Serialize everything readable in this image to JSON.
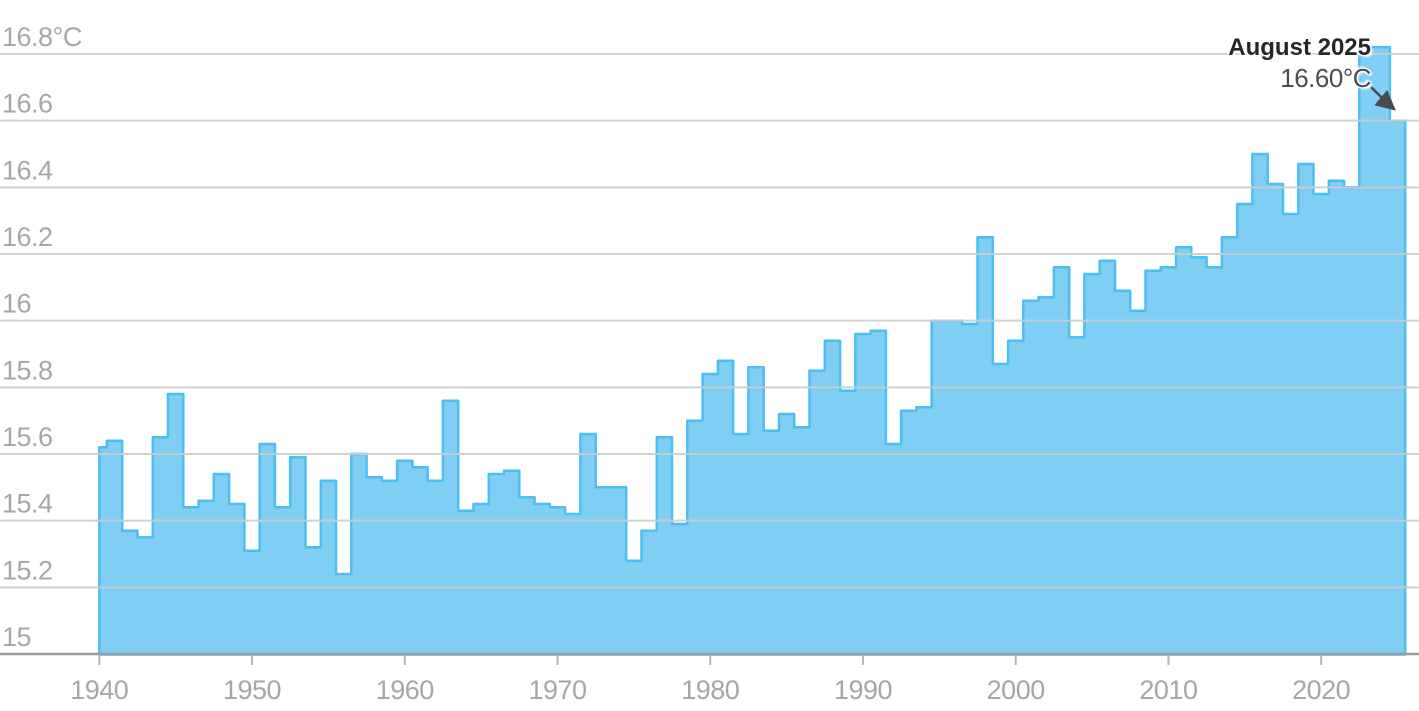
{
  "chart_data": {
    "type": "area",
    "subtype": "step",
    "description": "Global average August surface air temperature by year",
    "unit": "°C",
    "annotation": {
      "title": "August 2025",
      "value": "16.60°C"
    },
    "years": [
      1940,
      1941,
      1942,
      1943,
      1944,
      1945,
      1946,
      1947,
      1948,
      1949,
      1950,
      1951,
      1952,
      1953,
      1954,
      1955,
      1956,
      1957,
      1958,
      1959,
      1960,
      1961,
      1962,
      1963,
      1964,
      1965,
      1966,
      1967,
      1968,
      1969,
      1970,
      1971,
      1972,
      1973,
      1974,
      1975,
      1976,
      1977,
      1978,
      1979,
      1980,
      1981,
      1982,
      1983,
      1984,
      1985,
      1986,
      1987,
      1988,
      1989,
      1990,
      1991,
      1992,
      1993,
      1994,
      1995,
      1996,
      1997,
      1998,
      1999,
      2000,
      2001,
      2002,
      2003,
      2004,
      2005,
      2006,
      2007,
      2008,
      2009,
      2010,
      2011,
      2012,
      2013,
      2014,
      2015,
      2016,
      2017,
      2018,
      2019,
      2020,
      2021,
      2022,
      2023,
      2024,
      2025
    ],
    "values": [
      15.62,
      15.64,
      15.37,
      15.35,
      15.65,
      15.78,
      15.44,
      15.46,
      15.54,
      15.45,
      15.31,
      15.63,
      15.44,
      15.59,
      15.32,
      15.52,
      15.24,
      15.6,
      15.53,
      15.52,
      15.58,
      15.56,
      15.52,
      15.76,
      15.43,
      15.45,
      15.54,
      15.55,
      15.47,
      15.45,
      15.44,
      15.42,
      15.66,
      15.5,
      15.5,
      15.28,
      15.37,
      15.65,
      15.39,
      15.7,
      15.84,
      15.88,
      15.66,
      15.86,
      15.67,
      15.72,
      15.68,
      15.85,
      15.94,
      15.79,
      15.96,
      15.97,
      15.63,
      15.73,
      15.74,
      16.0,
      16.0,
      15.99,
      16.25,
      15.87,
      15.94,
      16.06,
      16.07,
      16.16,
      15.95,
      16.14,
      16.18,
      16.09,
      16.03,
      16.15,
      16.16,
      16.22,
      16.19,
      16.16,
      16.25,
      16.35,
      16.5,
      16.41,
      16.32,
      16.47,
      16.38,
      16.42,
      16.4,
      16.82,
      16.82,
      16.6
    ],
    "y_axis": {
      "min": 15.0,
      "max": 16.9,
      "ticks": [
        {
          "label": "16.8°C",
          "value": 16.8
        },
        {
          "label": "16.6",
          "value": 16.6
        },
        {
          "label": "16.4",
          "value": 16.4
        },
        {
          "label": "16.2",
          "value": 16.2
        },
        {
          "label": "16",
          "value": 16.0
        },
        {
          "label": "15.8",
          "value": 15.8
        },
        {
          "label": "15.6",
          "value": 15.6
        },
        {
          "label": "15.4",
          "value": 15.4
        },
        {
          "label": "15.2",
          "value": 15.2
        },
        {
          "label": "15",
          "value": 15.0
        }
      ]
    },
    "x_axis": {
      "ticks": [
        {
          "label": "1940",
          "year": 1940
        },
        {
          "label": "1950",
          "year": 1950
        },
        {
          "label": "1960",
          "year": 1960
        },
        {
          "label": "1970",
          "year": 1970
        },
        {
          "label": "1980",
          "year": 1980
        },
        {
          "label": "1990",
          "year": 1990
        },
        {
          "label": "2000",
          "year": 2000
        },
        {
          "label": "2010",
          "year": 2010
        },
        {
          "label": "2020",
          "year": 2020
        }
      ]
    },
    "grid": true,
    "legend": false,
    "colors": {
      "background": "#ffffff",
      "bar_fill": "#7FCEF4",
      "bar_stroke": "#4DBEF0",
      "gridline": "#cccccc",
      "axis_line": "#9e9e9e",
      "tick_mark": "#b5b5b5",
      "tick_label": "#a6a6a6",
      "annotation_title": "#262626",
      "annotation_value": "#4d4d4d",
      "arrow": "#4a4a4a"
    }
  }
}
